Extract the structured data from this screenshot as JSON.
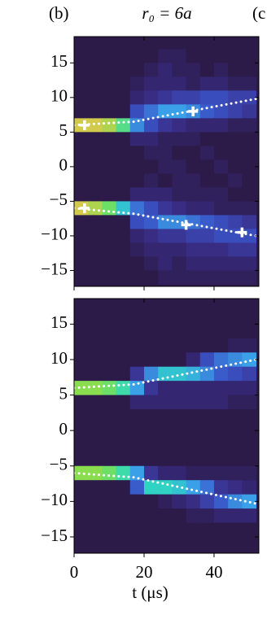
{
  "chart_data": [
    {
      "type": "heatmap",
      "label": "(b)",
      "title": "r₀ = 6a",
      "next_label": "(c",
      "xlim": [
        0,
        52.8
      ],
      "ylim": [
        -17.3,
        18.8
      ],
      "xticks": [
        0,
        20,
        40
      ],
      "xtick_labels": false,
      "yticks": [
        15,
        10,
        5,
        0,
        {
          "value": -5,
          "label": "−5"
        },
        {
          "value": -10,
          "label": "−10"
        },
        {
          "value": -15,
          "label": "−15"
        }
      ],
      "colorscale": [
        "#2c1a48",
        "#3a2e8a",
        "#3a55c8",
        "#3aa0e8",
        "#2fd8c0",
        "#7de050",
        "#f7c04a"
      ],
      "vlim": [
        0,
        1
      ],
      "xbins": [
        0,
        4,
        8,
        12,
        16,
        20,
        24,
        28,
        32,
        36,
        40,
        44,
        48,
        52
      ],
      "ybins": [
        19,
        17,
        15,
        13,
        11,
        9,
        7,
        5,
        3,
        1,
        -1,
        -3,
        -5,
        -7,
        -9,
        -11,
        -13,
        -15,
        -17
      ],
      "z": [
        [
          0,
          0,
          0,
          0,
          0,
          0,
          0,
          0,
          0,
          0,
          0,
          0,
          0
        ],
        [
          0,
          0,
          0,
          0,
          0,
          0,
          0.05,
          0.05,
          0,
          0,
          0,
          0,
          0
        ],
        [
          0,
          0,
          0,
          0,
          0,
          0.05,
          0.1,
          0.05,
          0.05,
          0,
          0.05,
          0,
          0
        ],
        [
          0,
          0,
          0,
          0,
          0.05,
          0.1,
          0.1,
          0.1,
          0.05,
          0.1,
          0.1,
          0.05,
          0.05
        ],
        [
          0,
          0,
          0,
          0,
          0.1,
          0.15,
          0.2,
          0.25,
          0.25,
          0.3,
          0.3,
          0.25,
          0.25
        ],
        [
          0,
          0,
          0,
          0,
          0.3,
          0.4,
          0.5,
          0.5,
          0.45,
          0.35,
          0.3,
          0.25,
          0.2
        ],
        [
          0.95,
          0.95,
          0.9,
          0.75,
          0.45,
          0.3,
          0.2,
          0.15,
          0.1,
          0.1,
          0.1,
          0.05,
          0.05
        ],
        [
          0,
          0,
          0,
          0,
          0.1,
          0.1,
          0.05,
          0.05,
          0.05,
          0,
          0,
          0,
          0
        ],
        [
          0,
          0,
          0,
          0,
          0,
          0.05,
          0.05,
          0,
          0,
          0.05,
          0,
          0,
          0
        ],
        [
          0,
          0,
          0,
          0,
          0,
          0,
          0.05,
          0.05,
          0,
          0,
          0.05,
          0,
          0
        ],
        [
          0,
          0,
          0,
          0,
          0,
          0.05,
          0,
          0.05,
          0.05,
          0,
          0,
          0.05,
          0
        ],
        [
          0,
          0,
          0,
          0,
          0.1,
          0.1,
          0.1,
          0.05,
          0.05,
          0.05,
          0.05,
          0,
          0
        ],
        [
          0.95,
          0.9,
          0.8,
          0.6,
          0.4,
          0.3,
          0.2,
          0.15,
          0.1,
          0.1,
          0.05,
          0.05,
          0.05
        ],
        [
          0,
          0,
          0,
          0,
          0.3,
          0.35,
          0.45,
          0.45,
          0.4,
          0.35,
          0.3,
          0.25,
          0.2
        ],
        [
          0,
          0,
          0,
          0,
          0.1,
          0.15,
          0.2,
          0.2,
          0.25,
          0.25,
          0.3,
          0.3,
          0.3
        ],
        [
          0,
          0,
          0,
          0,
          0.05,
          0.1,
          0.1,
          0.1,
          0.15,
          0.15,
          0.15,
          0.2,
          0.2
        ],
        [
          0,
          0,
          0,
          0,
          0,
          0.05,
          0.1,
          0.05,
          0.1,
          0.1,
          0.1,
          0.1,
          0.1
        ],
        [
          0,
          0,
          0,
          0,
          0,
          0,
          0.05,
          0.05,
          0.05,
          0.05,
          0.05,
          0.05,
          0.05
        ]
      ],
      "lines": [
        {
          "x": [
            0,
            17,
            52
          ],
          "values": [
            6,
            6.5,
            9.8
          ]
        },
        {
          "x": [
            0,
            17,
            52
          ],
          "values": [
            -6,
            -6.8,
            -10
          ]
        }
      ],
      "points": {
        "x": [
          3,
          34,
          3,
          32,
          48
        ],
        "values": [
          6,
          8,
          -6,
          -8.4,
          -9.5
        ]
      }
    },
    {
      "type": "heatmap",
      "xlabel": "t (μs)",
      "xlim": [
        0,
        52.8
      ],
      "ylim": [
        -17.3,
        18.6
      ],
      "xticks": [
        0,
        20,
        40
      ],
      "xtick_labels": true,
      "yticks": [
        15,
        10,
        5,
        0,
        {
          "value": -5,
          "label": "−5"
        },
        {
          "value": -10,
          "label": "−10"
        },
        {
          "value": -15,
          "label": "−15"
        }
      ],
      "colorscale": [
        "#2c1a48",
        "#3a2e8a",
        "#3a55c8",
        "#3aa0e8",
        "#2fd8c0",
        "#7de050",
        "#f7c04a"
      ],
      "vlim": [
        0,
        1
      ],
      "xbins": [
        0,
        4,
        8,
        12,
        16,
        20,
        24,
        28,
        32,
        36,
        40,
        44,
        48,
        52
      ],
      "ybins": [
        19,
        17,
        15,
        13,
        11,
        9,
        7,
        5,
        3,
        1,
        -1,
        -3,
        -5,
        -7,
        -9,
        -11,
        -13,
        -15,
        -17
      ],
      "z": [
        [
          0,
          0,
          0,
          0,
          0,
          0,
          0,
          0,
          0,
          0,
          0,
          0,
          0
        ],
        [
          0,
          0,
          0,
          0,
          0,
          0,
          0,
          0,
          0,
          0,
          0,
          0,
          0
        ],
        [
          0,
          0,
          0,
          0,
          0,
          0,
          0,
          0,
          0,
          0,
          0,
          0,
          0
        ],
        [
          0,
          0,
          0,
          0,
          0,
          0,
          0,
          0,
          0,
          0,
          0,
          0.05,
          0.05
        ],
        [
          0,
          0,
          0,
          0,
          0,
          0,
          0,
          0,
          0.1,
          0.3,
          0.4,
          0.45,
          0.5
        ],
        [
          0,
          0,
          0,
          0,
          0.2,
          0.45,
          0.6,
          0.6,
          0.55,
          0.45,
          0.35,
          0.3,
          0.25
        ],
        [
          0.85,
          0.85,
          0.8,
          0.7,
          0.5,
          0.2,
          0.1,
          0.1,
          0.1,
          0.1,
          0.1,
          0.1,
          0.1
        ],
        [
          0,
          0,
          0,
          0,
          0.1,
          0.1,
          0.1,
          0.1,
          0.1,
          0.1,
          0.1,
          0.05,
          0.05
        ],
        [
          0,
          0,
          0,
          0,
          0,
          0,
          0,
          0,
          0,
          0,
          0,
          0,
          0
        ],
        [
          0,
          0,
          0,
          0,
          0,
          0,
          0,
          0,
          0,
          0,
          0,
          0,
          0
        ],
        [
          0,
          0,
          0,
          0,
          0,
          0,
          0,
          0,
          0,
          0,
          0,
          0,
          0
        ],
        [
          0,
          0,
          0,
          0,
          0,
          0,
          0,
          0,
          0,
          0,
          0,
          0,
          0
        ],
        [
          0.85,
          0.85,
          0.8,
          0.7,
          0.5,
          0.2,
          0.1,
          0.1,
          0.05,
          0.05,
          0.05,
          0.05,
          0.05
        ],
        [
          0,
          0,
          0,
          0,
          0.35,
          0.65,
          0.65,
          0.6,
          0.5,
          0.4,
          0.2,
          0.15,
          0.1
        ],
        [
          0,
          0,
          0,
          0,
          0,
          0,
          0.05,
          0.1,
          0.15,
          0.25,
          0.35,
          0.45,
          0.5
        ],
        [
          0,
          0,
          0,
          0,
          0,
          0,
          0,
          0,
          0.05,
          0.05,
          0.1,
          0.1,
          0.1
        ],
        [
          0,
          0,
          0,
          0,
          0,
          0,
          0,
          0,
          0,
          0,
          0,
          0,
          0
        ],
        [
          0,
          0,
          0,
          0,
          0,
          0,
          0,
          0,
          0,
          0,
          0,
          0,
          0
        ]
      ],
      "lines": [
        {
          "x": [
            0,
            17,
            52
          ],
          "values": [
            6,
            6.5,
            10
          ]
        },
        {
          "x": [
            0,
            17,
            52
          ],
          "values": [
            -6,
            -6.6,
            -10.3
          ]
        }
      ]
    }
  ]
}
